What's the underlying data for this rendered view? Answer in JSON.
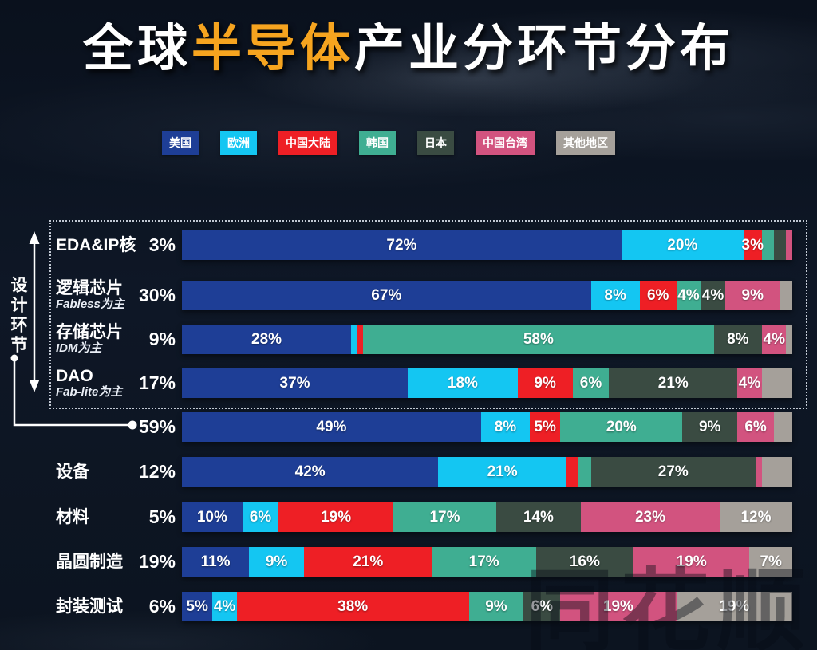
{
  "title": {
    "prefix": "全球",
    "highlight": "半导体",
    "suffix": "产业分环节分布"
  },
  "colors": {
    "us": "#1e3e96",
    "eu": "#14c6f2",
    "cn": "#ee1f25",
    "kr": "#3fae92",
    "jp": "#3a4b42",
    "tw": "#d2537f",
    "other": "#a5a09a",
    "highlight": "#f6a41f"
  },
  "legend": [
    {
      "key": "us",
      "label": "美国"
    },
    {
      "key": "eu",
      "label": "欧洲"
    },
    {
      "key": "cn",
      "label": "中国大陆"
    },
    {
      "key": "kr",
      "label": "韩国"
    },
    {
      "key": "jp",
      "label": "日本"
    },
    {
      "key": "tw",
      "label": "中国台湾"
    },
    {
      "key": "other",
      "label": "其他地区"
    }
  ],
  "design_bracket": {
    "label": "设计环节"
  },
  "watermark": "同花顺",
  "chart_data": {
    "type": "bar",
    "orientation": "horizontal",
    "stacked": true,
    "unit": "%",
    "title": "全球半导体产业分环节分布",
    "series_names": [
      "美国",
      "欧洲",
      "中国大陆",
      "韩国",
      "日本",
      "中国台湾",
      "其他地区"
    ],
    "rows": [
      {
        "name": "EDA&IP核",
        "sub": "",
        "total": "3%",
        "segments": [
          {
            "key": "us",
            "value": 72,
            "label": "72%"
          },
          {
            "key": "eu",
            "value": 20,
            "label": "20%"
          },
          {
            "key": "cn",
            "value": 3,
            "label": "3%"
          },
          {
            "key": "kr",
            "value": 2,
            "label": ""
          },
          {
            "key": "jp",
            "value": 2,
            "label": ""
          },
          {
            "key": "tw",
            "value": 1,
            "label": ""
          }
        ]
      },
      {
        "name": "逻辑芯片",
        "sub": "Fabless为主",
        "total": "30%",
        "segments": [
          {
            "key": "us",
            "value": 67,
            "label": "67%"
          },
          {
            "key": "eu",
            "value": 8,
            "label": "8%"
          },
          {
            "key": "cn",
            "value": 6,
            "label": "6%"
          },
          {
            "key": "kr",
            "value": 4,
            "label": "4%"
          },
          {
            "key": "jp",
            "value": 4,
            "label": "4%"
          },
          {
            "key": "tw",
            "value": 9,
            "label": "9%"
          },
          {
            "key": "other",
            "value": 2,
            "label": ""
          }
        ]
      },
      {
        "name": "存储芯片",
        "sub": "IDM为主",
        "total": "9%",
        "segments": [
          {
            "key": "us",
            "value": 28,
            "label": "28%"
          },
          {
            "key": "eu",
            "value": 1,
            "label": ""
          },
          {
            "key": "cn",
            "value": 1,
            "label": ""
          },
          {
            "key": "kr",
            "value": 58,
            "label": "58%"
          },
          {
            "key": "jp",
            "value": 8,
            "label": "8%"
          },
          {
            "key": "tw",
            "value": 4,
            "label": "4%"
          },
          {
            "key": "other",
            "value": 1,
            "label": ""
          }
        ]
      },
      {
        "name": "DAO",
        "sub": "Fab-lite为主",
        "total": "17%",
        "segments": [
          {
            "key": "us",
            "value": 37,
            "label": "37%"
          },
          {
            "key": "eu",
            "value": 18,
            "label": "18%"
          },
          {
            "key": "cn",
            "value": 9,
            "label": "9%"
          },
          {
            "key": "kr",
            "value": 6,
            "label": "6%"
          },
          {
            "key": "jp",
            "value": 21,
            "label": "21%"
          },
          {
            "key": "tw",
            "value": 4,
            "label": "4%"
          },
          {
            "key": "other",
            "value": 5,
            "label": ""
          }
        ]
      },
      {
        "name": "",
        "sub": "",
        "total": "59%",
        "segments": [
          {
            "key": "us",
            "value": 49,
            "label": "49%"
          },
          {
            "key": "eu",
            "value": 8,
            "label": "8%"
          },
          {
            "key": "cn",
            "value": 5,
            "label": "5%"
          },
          {
            "key": "kr",
            "value": 20,
            "label": "20%"
          },
          {
            "key": "jp",
            "value": 9,
            "label": "9%"
          },
          {
            "key": "tw",
            "value": 6,
            "label": "6%"
          },
          {
            "key": "other",
            "value": 3,
            "label": ""
          }
        ]
      },
      {
        "name": "设备",
        "sub": "",
        "total": "12%",
        "segments": [
          {
            "key": "us",
            "value": 42,
            "label": "42%"
          },
          {
            "key": "eu",
            "value": 21,
            "label": "21%"
          },
          {
            "key": "cn",
            "value": 2,
            "label": ""
          },
          {
            "key": "kr",
            "value": 2,
            "label": ""
          },
          {
            "key": "jp",
            "value": 27,
            "label": "27%"
          },
          {
            "key": "tw",
            "value": 1,
            "label": ""
          },
          {
            "key": "other",
            "value": 5,
            "label": ""
          }
        ]
      },
      {
        "name": "材料",
        "sub": "",
        "total": "5%",
        "segments": [
          {
            "key": "us",
            "value": 10,
            "label": "10%"
          },
          {
            "key": "eu",
            "value": 6,
            "label": "6%"
          },
          {
            "key": "cn",
            "value": 19,
            "label": "19%"
          },
          {
            "key": "kr",
            "value": 17,
            "label": "17%"
          },
          {
            "key": "jp",
            "value": 14,
            "label": "14%"
          },
          {
            "key": "tw",
            "value": 23,
            "label": "23%"
          },
          {
            "key": "other",
            "value": 12,
            "label": "12%"
          }
        ]
      },
      {
        "name": "晶圆制造",
        "sub": "",
        "total": "19%",
        "segments": [
          {
            "key": "us",
            "value": 11,
            "label": "11%"
          },
          {
            "key": "eu",
            "value": 9,
            "label": "9%"
          },
          {
            "key": "cn",
            "value": 21,
            "label": "21%"
          },
          {
            "key": "kr",
            "value": 17,
            "label": "17%"
          },
          {
            "key": "jp",
            "value": 16,
            "label": "16%"
          },
          {
            "key": "tw",
            "value": 19,
            "label": "19%"
          },
          {
            "key": "other",
            "value": 7,
            "label": "7%"
          }
        ]
      },
      {
        "name": "封装测试",
        "sub": "",
        "total": "6%",
        "segments": [
          {
            "key": "us",
            "value": 5,
            "label": "5%"
          },
          {
            "key": "eu",
            "value": 4,
            "label": "4%"
          },
          {
            "key": "cn",
            "value": 38,
            "label": "38%"
          },
          {
            "key": "kr",
            "value": 9,
            "label": "9%"
          },
          {
            "key": "jp",
            "value": 6,
            "label": "6%"
          },
          {
            "key": "tw",
            "value": 19,
            "label": "19%"
          },
          {
            "key": "other",
            "value": 19,
            "label": "19%"
          }
        ]
      }
    ]
  }
}
